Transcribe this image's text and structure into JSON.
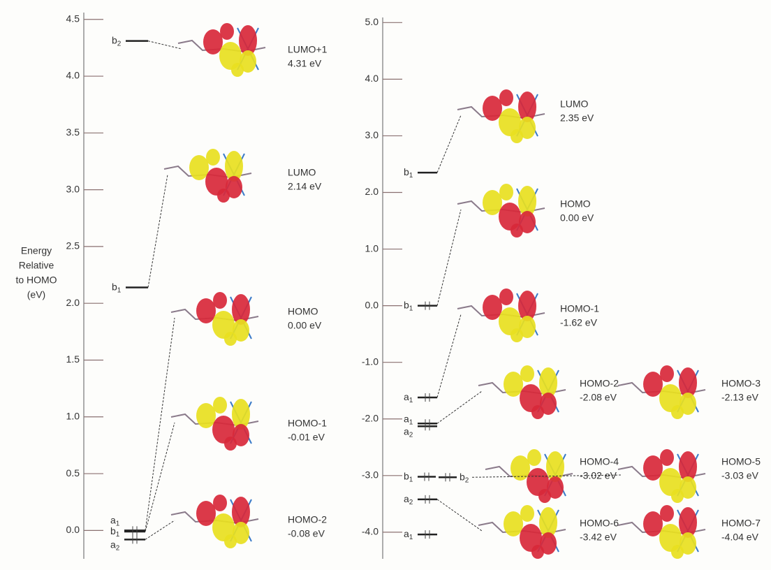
{
  "chart_data": [
    {
      "type": "energy-level",
      "y_label": [
        "Energy",
        "Relative",
        "to HOMO",
        "(eV)"
      ],
      "ylim": [
        -0.25,
        4.56
      ],
      "yticks": [
        {
          "value": 0,
          "label": "0.0"
        },
        {
          "value": 0.5,
          "label": "0.5"
        },
        {
          "value": 1,
          "label": "1.0"
        },
        {
          "value": 1.5,
          "label": "1.5"
        },
        {
          "value": 2,
          "label": "2.0"
        },
        {
          "value": 2.5,
          "label": "2.5"
        },
        {
          "value": 3,
          "label": "3.0"
        },
        {
          "value": 3.5,
          "label": "3.5"
        },
        {
          "value": 4,
          "label": "4.0"
        },
        {
          "value": 4.5,
          "label": "4.5"
        }
      ],
      "orbitals": [
        {
          "name": "LUMO+1",
          "energy": 4.31,
          "energy_label": "4.31 eV",
          "symmetry": "b",
          "subscript": "2",
          "occupied": false
        },
        {
          "name": "LUMO",
          "energy": 2.14,
          "energy_label": "2.14 eV",
          "symmetry": "b",
          "subscript": "1",
          "occupied": false
        },
        {
          "name": "HOMO",
          "energy": 0.0,
          "energy_label": "0.00 eV",
          "symmetry": "a",
          "subscript": "1",
          "occupied": true
        },
        {
          "name": "HOMO-1",
          "energy": -0.01,
          "energy_label": "-0.01 eV",
          "symmetry": "b",
          "subscript": "1",
          "occupied": true
        },
        {
          "name": "HOMO-2",
          "energy": -0.08,
          "energy_label": "-0.08 eV",
          "symmetry": "a",
          "subscript": "2",
          "occupied": true
        }
      ]
    },
    {
      "type": "energy-level",
      "ylim": [
        -4.47,
        5.09
      ],
      "yticks": [
        {
          "value": -4,
          "label": "-4.0"
        },
        {
          "value": -3,
          "label": "-3.0"
        },
        {
          "value": -2,
          "label": "-2.0"
        },
        {
          "value": -1,
          "label": "-1.0"
        },
        {
          "value": 0,
          "label": "0.0"
        },
        {
          "value": 1,
          "label": "1.0"
        },
        {
          "value": 2,
          "label": "2.0"
        },
        {
          "value": 3,
          "label": "3.0"
        },
        {
          "value": 4,
          "label": "4.0"
        },
        {
          "value": 5,
          "label": "5.0"
        }
      ],
      "orbitals": [
        {
          "name": "LUMO",
          "energy": 2.35,
          "energy_label": "2.35 eV",
          "symmetry": "b",
          "subscript": "1",
          "occupied": false
        },
        {
          "name": "HOMO",
          "energy": 0.0,
          "energy_label": "0.00 eV",
          "symmetry": "b",
          "subscript": "1",
          "occupied": true
        },
        {
          "name": "HOMO-1",
          "energy": -1.62,
          "energy_label": "-1.62 eV",
          "symmetry": "a",
          "subscript": "1",
          "occupied": true
        },
        {
          "name": "HOMO-2",
          "energy": -2.08,
          "energy_label": "-2.08 eV",
          "symmetry": "a",
          "subscript": "1",
          "occupied": true
        },
        {
          "name": "HOMO-3",
          "energy": -2.13,
          "energy_label": "-2.13 eV",
          "symmetry": "a",
          "subscript": "2",
          "occupied": true
        },
        {
          "name": "HOMO-4",
          "energy": -3.02,
          "energy_label": "-3.02 eV",
          "symmetry": "b",
          "subscript": "1",
          "occupied": true
        },
        {
          "name": "HOMO-5",
          "energy": -3.03,
          "energy_label": "-3.03 eV",
          "symmetry": "b",
          "subscript": "2",
          "occupied": true
        },
        {
          "name": "HOMO-6",
          "energy": -3.42,
          "energy_label": "-3.42 eV",
          "symmetry": "a",
          "subscript": "2",
          "occupied": true
        },
        {
          "name": "HOMO-7",
          "energy": -4.04,
          "energy_label": "-4.04 eV",
          "symmetry": "a",
          "subscript": "1",
          "occupied": true
        }
      ]
    }
  ]
}
